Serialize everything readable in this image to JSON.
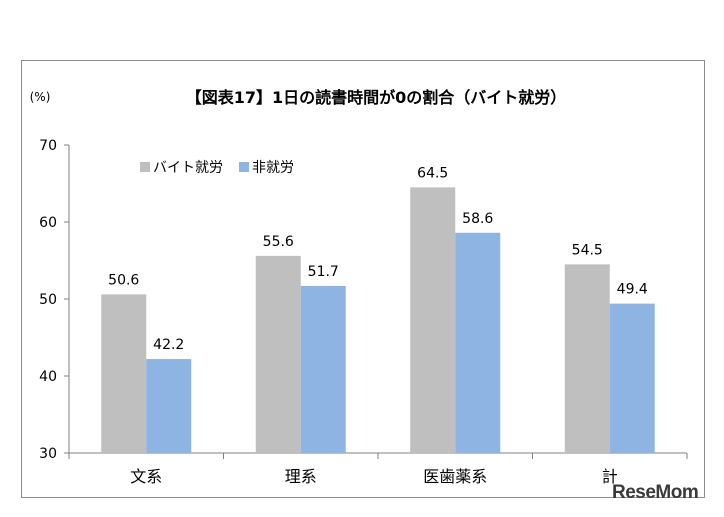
{
  "chart_data": {
    "type": "bar",
    "title": "【図表17】1日の読書時間が0の割合（バイト就労）",
    "unit_label": "(%)",
    "categories": [
      "文系",
      "理系",
      "医歯薬系",
      "計"
    ],
    "series": [
      {
        "name": "バイト就労",
        "color": "#bfbfbf",
        "values": [
          50.6,
          55.6,
          64.5,
          54.5
        ]
      },
      {
        "name": "非就労",
        "color": "#8eb4e3",
        "values": [
          42.2,
          51.7,
          58.6,
          49.4
        ]
      }
    ],
    "ylim": [
      30,
      70
    ],
    "yticks": [
      30,
      40,
      50,
      60,
      70
    ],
    "legend_position": "top-left",
    "grid": false
  },
  "watermark": "ReseMom"
}
